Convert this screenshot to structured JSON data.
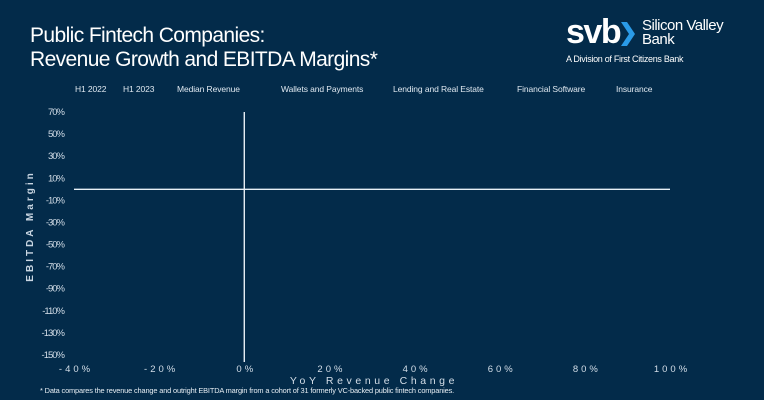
{
  "header": {
    "title_line1": "Public Fintech Companies:",
    "title_line2": "Revenue Growth and EBITDA Margins*"
  },
  "logo": {
    "mark": "svb",
    "name_line1": "Silicon Valley",
    "name_line2": "Bank",
    "division": "A Division of First Citizens Bank",
    "chevron_color": "#2A9BE8"
  },
  "legend": {
    "items": [
      {
        "label": "H1 2022"
      },
      {
        "label": "H1 2023"
      },
      {
        "label": "Median Revenue"
      },
      {
        "label": "Wallets and Payments"
      },
      {
        "label": "Lending and Real Estate"
      },
      {
        "label": "Financial Software"
      },
      {
        "label": "Insurance"
      }
    ]
  },
  "chart_data": {
    "type": "scatter",
    "title": "Public Fintech Companies: Revenue Growth and EBITDA Margins*",
    "xlabel": "YoY Revenue Change",
    "ylabel": "EBITDA Margin",
    "xlim": [
      -40,
      100
    ],
    "ylim": [
      -150,
      70
    ],
    "x_ticks": [
      -40,
      -20,
      0,
      20,
      40,
      60,
      80,
      100
    ],
    "x_tick_labels": [
      "-40%",
      "-20%",
      "0%",
      "20%",
      "40%",
      "60%",
      "80%",
      "100%"
    ],
    "y_ticks": [
      70,
      50,
      30,
      10,
      -10,
      -30,
      -50,
      -70,
      -90,
      -110,
      -130,
      -150
    ],
    "y_tick_labels": [
      "70%",
      "50%",
      "30%",
      "10%",
      "-10%",
      "-30%",
      "-50%",
      "-70%",
      "-90%",
      "-110%",
      "-130%",
      "-150%"
    ],
    "zero_lines": {
      "x": 0,
      "y": 0
    },
    "grid": false,
    "legend_position": "top",
    "series": [
      {
        "name": "H1 2022",
        "points": []
      },
      {
        "name": "H1 2023",
        "points": []
      },
      {
        "name": "Median Revenue",
        "points": []
      },
      {
        "name": "Wallets and Payments",
        "points": []
      },
      {
        "name": "Lending and Real Estate",
        "points": []
      },
      {
        "name": "Financial Software",
        "points": []
      },
      {
        "name": "Insurance",
        "points": []
      }
    ],
    "background_color": "#032B4A",
    "axis_color": "#E8F0F6"
  },
  "footnote": "* Data compares the revenue change and outright EBITDA margin from a cohort of 31 formerly VC-backed public fintech companies."
}
